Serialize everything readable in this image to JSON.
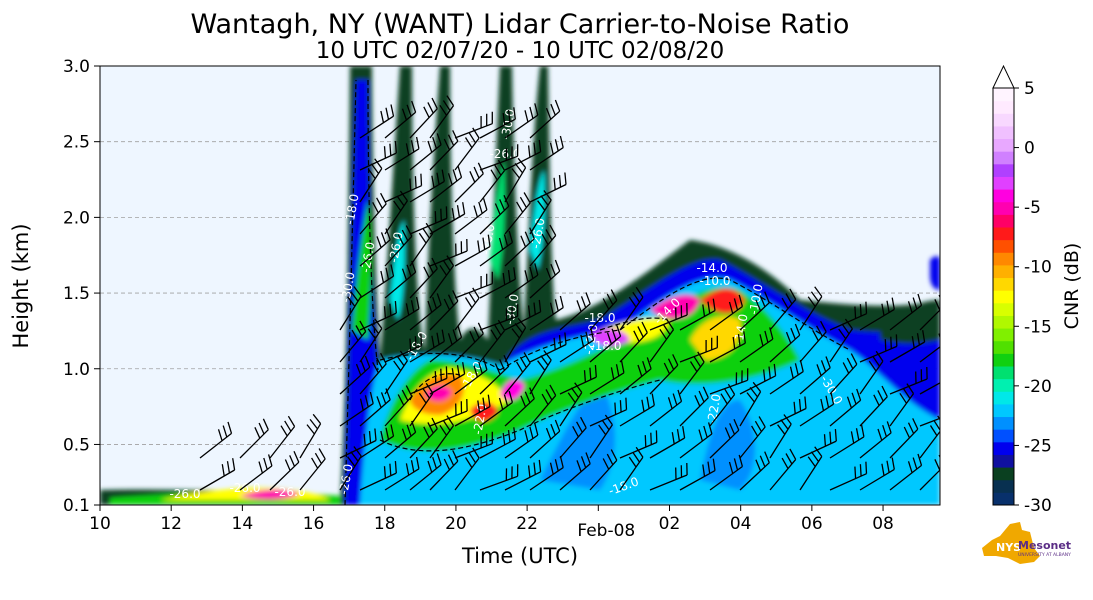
{
  "chart_data": {
    "type": "heatmap",
    "title": "Wantagh, NY (WANT) Lidar Carrier-to-Noise Ratio",
    "subtitle": "10 UTC 02/07/20 - 10 UTC 02/08/20",
    "xlabel": "Time (UTC)",
    "ylabel": "Height (km)",
    "x_ticks": [
      "10",
      "12",
      "14",
      "16",
      "18",
      "20",
      "22",
      "02",
      "04",
      "06",
      "08"
    ],
    "x_tick_hours": [
      10,
      12,
      14,
      16,
      18,
      20,
      22,
      26,
      28,
      30,
      32
    ],
    "x_date_label": "Feb-08",
    "x_date_hour": 24,
    "xlim": [
      10,
      33.6
    ],
    "y_ticks": [
      "0.1",
      "0.5",
      "1.0",
      "1.5",
      "2.0",
      "2.5",
      "3.0"
    ],
    "y_tick_values": [
      0.1,
      0.5,
      1.0,
      1.5,
      2.0,
      2.5,
      3.0
    ],
    "ylim": [
      0.1,
      3.0
    ],
    "grid": "horizontal dashed",
    "colorbar": {
      "label": "CNR (dB)",
      "ticks": [
        "5",
        "0",
        "-5",
        "-10",
        "-15",
        "-20",
        "-25",
        "-30"
      ],
      "tick_values": [
        5,
        0,
        -5,
        -10,
        -15,
        -20,
        -25,
        -30
      ],
      "range": [
        -30,
        5
      ],
      "extend": "max",
      "colors": [
        "#08306b",
        "#083050",
        "#0a4020",
        "#1010a0",
        "#0000ee",
        "#0050ff",
        "#0090ff",
        "#00c8ff",
        "#00e8e8",
        "#00f0b0",
        "#00e070",
        "#10d010",
        "#50e000",
        "#80f000",
        "#b0f800",
        "#d8ff00",
        "#ffff00",
        "#ffd800",
        "#ffb000",
        "#ff8800",
        "#ff5000",
        "#ff1a1a",
        "#ff0066",
        "#ff00b0",
        "#ff00e0",
        "#e040ff",
        "#b040ff",
        "#d080ff",
        "#e8a8ff",
        "#f0c0ff",
        "#f8d8ff",
        "#ffeaff",
        "#fff4ff"
      ]
    },
    "contour_labels": [
      "-26.0",
      "-26.0",
      "-26.0",
      "-26.0",
      "-26.0",
      "-26.0",
      "-26.0",
      "-26.0",
      "-26.0",
      "-30.0",
      "-30.0",
      "-30.0",
      "-30.0",
      "-18.0",
      "-18.0",
      "-18.0",
      "-18.0",
      "-18.0",
      "-18.0",
      "-14.0",
      "-14.0",
      "-14.0",
      "-22.0",
      "-22.0",
      "-22.0",
      "-10.0",
      "-10.0"
    ]
  },
  "logo": {
    "nys": "NYS",
    "name": "Mesonet",
    "sub": "UNIVERSITY AT ALBANY"
  }
}
